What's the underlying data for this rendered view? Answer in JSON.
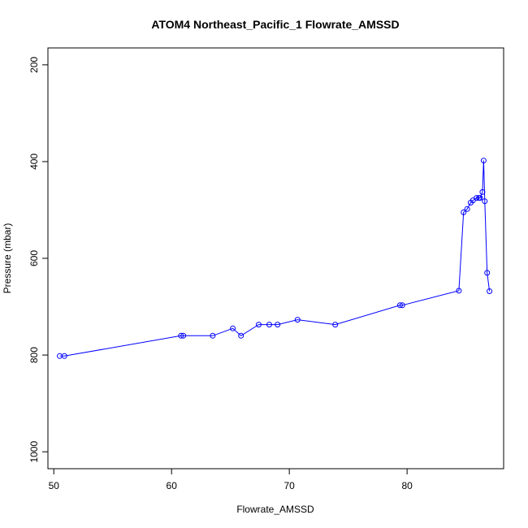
{
  "chart_data": {
    "type": "scatter",
    "title": "ATOM4 Northeast_Pacific_1 Flowrate_AMSSD",
    "xlabel": "Flowrate_AMSSD",
    "ylabel": "Pressure (mbar)",
    "xlim": [
      49.5,
      88.2
    ],
    "ylim": [
      1035,
      165
    ],
    "y_reversed": true,
    "x_ticks": [
      50,
      60,
      70,
      80
    ],
    "y_ticks": [
      200,
      400,
      600,
      800,
      1000
    ],
    "grid": false,
    "legend": "none",
    "colors": {
      "series": "#0000ff",
      "axes": "#000000"
    },
    "series": [
      {
        "style": "lines+points",
        "x": [
          50.5,
          50.9,
          60.8,
          61.0,
          63.5,
          65.2,
          65.9,
          67.4,
          68.3,
          69.0,
          70.7,
          73.9,
          79.4,
          79.6,
          84.4,
          84.8,
          85.1,
          85.4,
          85.6,
          85.9,
          86.1,
          86.2,
          86.4,
          86.5,
          86.6,
          86.8,
          87.0
        ],
        "y": [
          802,
          802,
          760,
          760,
          760,
          745,
          760,
          737,
          737,
          737,
          727,
          737,
          697,
          697,
          667,
          505,
          498,
          485,
          480,
          475,
          475,
          475,
          463,
          398,
          482,
          630,
          668
        ]
      }
    ]
  }
}
